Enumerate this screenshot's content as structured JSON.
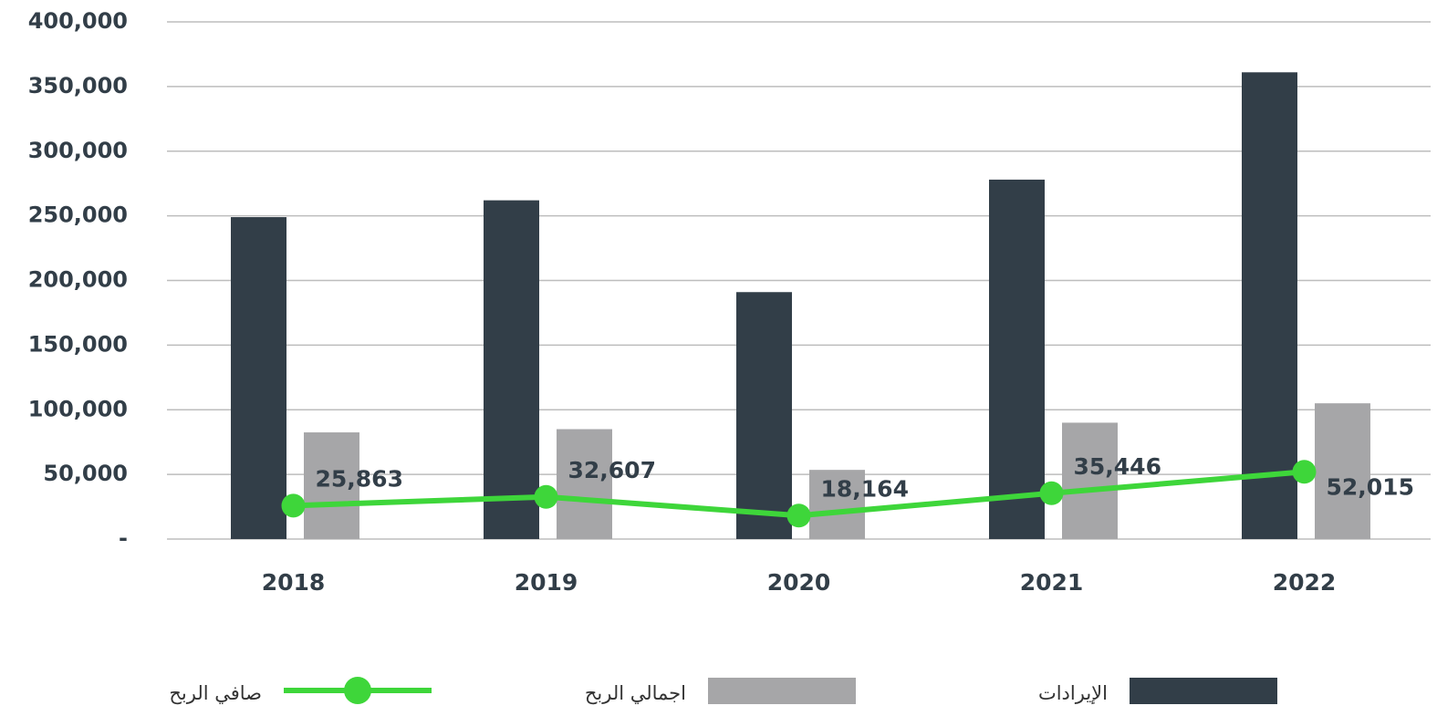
{
  "chart_data": {
    "type": "bar",
    "categories": [
      "2018",
      "2019",
      "2020",
      "2021",
      "2022"
    ],
    "series": [
      {
        "name": "الإيرادات",
        "type": "bar",
        "color": "#323e48",
        "values": [
          249000,
          262000,
          191000,
          278000,
          361000
        ]
      },
      {
        "name": "اجمالي الربح",
        "type": "bar",
        "color": "#a6a6a8",
        "values": [
          82500,
          85000,
          53500,
          90000,
          105000
        ]
      },
      {
        "name": "صافي الربح",
        "type": "line",
        "color": "#3ed63a",
        "values": [
          25863,
          32607,
          18164,
          35446,
          52015
        ],
        "value_labels": [
          "25,863",
          "32,607",
          "18,164",
          "35,446",
          "52,015"
        ]
      }
    ],
    "ylim": [
      0,
      400000
    ],
    "yticks": [
      {
        "value": 0,
        "label": "-"
      },
      {
        "value": 50000,
        "label": "50,000"
      },
      {
        "value": 100000,
        "label": "100,000"
      },
      {
        "value": 150000,
        "label": "150,000"
      },
      {
        "value": 200000,
        "label": "200,000"
      },
      {
        "value": 250000,
        "label": "250,000"
      },
      {
        "value": 300000,
        "label": "300,000"
      },
      {
        "value": 350000,
        "label": "350,000"
      },
      {
        "value": 400000,
        "label": "400,000"
      }
    ],
    "grid": true,
    "legend": "bottom"
  }
}
